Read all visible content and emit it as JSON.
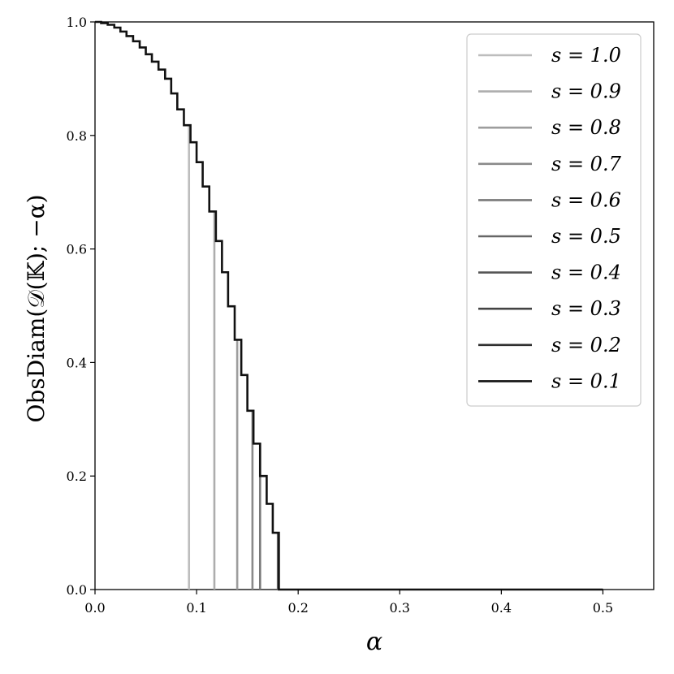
{
  "chart_data": {
    "type": "line",
    "title": "",
    "xlabel": "α",
    "ylabel": "ObsDiam(𝒟(𝕂); −α)",
    "xlim": [
      0.0,
      0.55
    ],
    "ylim": [
      0.0,
      1.0
    ],
    "xticks": [
      0.0,
      0.1,
      0.2,
      0.3,
      0.4,
      0.5
    ],
    "xtick_labels": [
      "0.0",
      "0.1",
      "0.2",
      "0.3",
      "0.4",
      "0.5"
    ],
    "yticks": [
      0.0,
      0.2,
      0.4,
      0.6,
      0.8,
      1.0
    ],
    "ytick_labels": [
      "0.0",
      "0.2",
      "0.4",
      "0.6",
      "0.8",
      "1.0"
    ],
    "grid": false,
    "legend_position": "top-right",
    "envelope": {
      "alpha": [
        0.0,
        0.006,
        0.0125,
        0.019,
        0.025,
        0.031,
        0.0375,
        0.044,
        0.05,
        0.056,
        0.0625,
        0.069,
        0.075,
        0.081,
        0.0875,
        0.094,
        0.1,
        0.106,
        0.1125,
        0.119,
        0.125,
        0.131,
        0.1375,
        0.144,
        0.15,
        0.156,
        0.1625,
        0.169,
        0.175,
        0.181,
        0.1875,
        0.194,
        0.2,
        0.206,
        0.2125,
        0.219,
        0.225
      ],
      "value": [
        1.0,
        0.998,
        0.995,
        0.99,
        0.983,
        0.975,
        0.966,
        0.955,
        0.943,
        0.93,
        0.916,
        0.9,
        0.874,
        0.846,
        0.818,
        0.788,
        0.753,
        0.71,
        0.666,
        0.614,
        0.559,
        0.499,
        0.44,
        0.378,
        0.315,
        0.257,
        0.2,
        0.151,
        0.1,
        0.0,
        0.0,
        0.0,
        0.0,
        0.0,
        0.0,
        0.0,
        0.0
      ]
    },
    "series": [
      {
        "name": "s = 1.0",
        "color": "#bdbdbd",
        "cutoff": 0.0925
      },
      {
        "name": "s = 0.9",
        "color": "#adadad",
        "cutoff": 0.1175
      },
      {
        "name": "s = 0.8",
        "color": "#9d9d9d",
        "cutoff": 0.14
      },
      {
        "name": "s = 0.7",
        "color": "#8a8a8a",
        "cutoff": 0.155
      },
      {
        "name": "s = 0.6",
        "color": "#787878",
        "cutoff": 0.1625
      },
      {
        "name": "s = 0.5",
        "color": "#666666",
        "cutoff": 0.18
      },
      {
        "name": "s = 0.4",
        "color": "#555555",
        "cutoff": 0.19
      },
      {
        "name": "s = 0.3",
        "color": "#434343",
        "cutoff": 0.2075
      },
      {
        "name": "s = 0.2",
        "color": "#2f2f2f",
        "cutoff": 0.215
      },
      {
        "name": "s = 0.1",
        "color": "#111111",
        "cutoff": 0.225
      }
    ],
    "zero_line_end": 0.5
  }
}
